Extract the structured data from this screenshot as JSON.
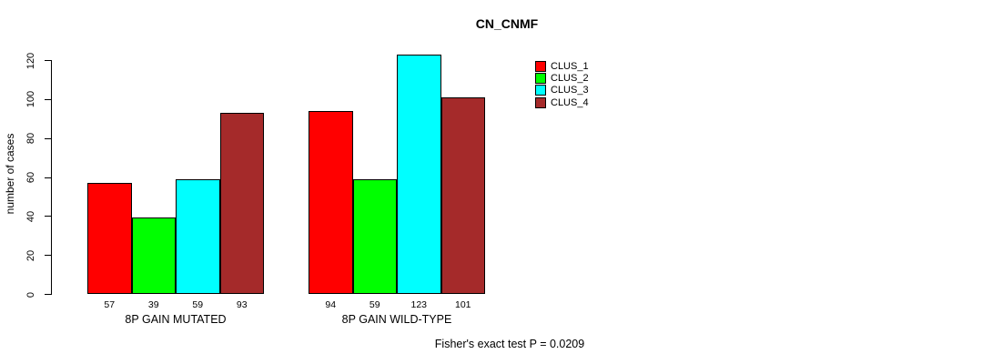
{
  "chart_data": {
    "type": "bar",
    "title": "CN_CNMF",
    "ylabel": "number of cases",
    "xlabel": "",
    "ylim": [
      0,
      130
    ],
    "yticks": [
      0,
      20,
      40,
      60,
      80,
      100,
      120
    ],
    "categories": [
      "8P GAIN MUTATED",
      "8P GAIN WILD-TYPE"
    ],
    "series": [
      {
        "name": "CLUS_1",
        "color": "#FF0000",
        "values": [
          57,
          94
        ]
      },
      {
        "name": "CLUS_2",
        "color": "#00FF00",
        "values": [
          39,
          59
        ]
      },
      {
        "name": "CLUS_3",
        "color": "#00FFFF",
        "values": [
          59,
          123
        ]
      },
      {
        "name": "CLUS_4",
        "color": "#A52A2A",
        "values": [
          93,
          101
        ]
      }
    ],
    "bar_value_labels": [
      [
        57,
        39,
        59,
        93
      ],
      [
        94,
        59,
        123,
        101
      ]
    ],
    "legend": {
      "position": "top-right",
      "entries": [
        "CLUS_1",
        "CLUS_2",
        "CLUS_3",
        "CLUS_4"
      ]
    },
    "grid": false,
    "annotation": "Fisher's exact test P = 0.0209"
  }
}
